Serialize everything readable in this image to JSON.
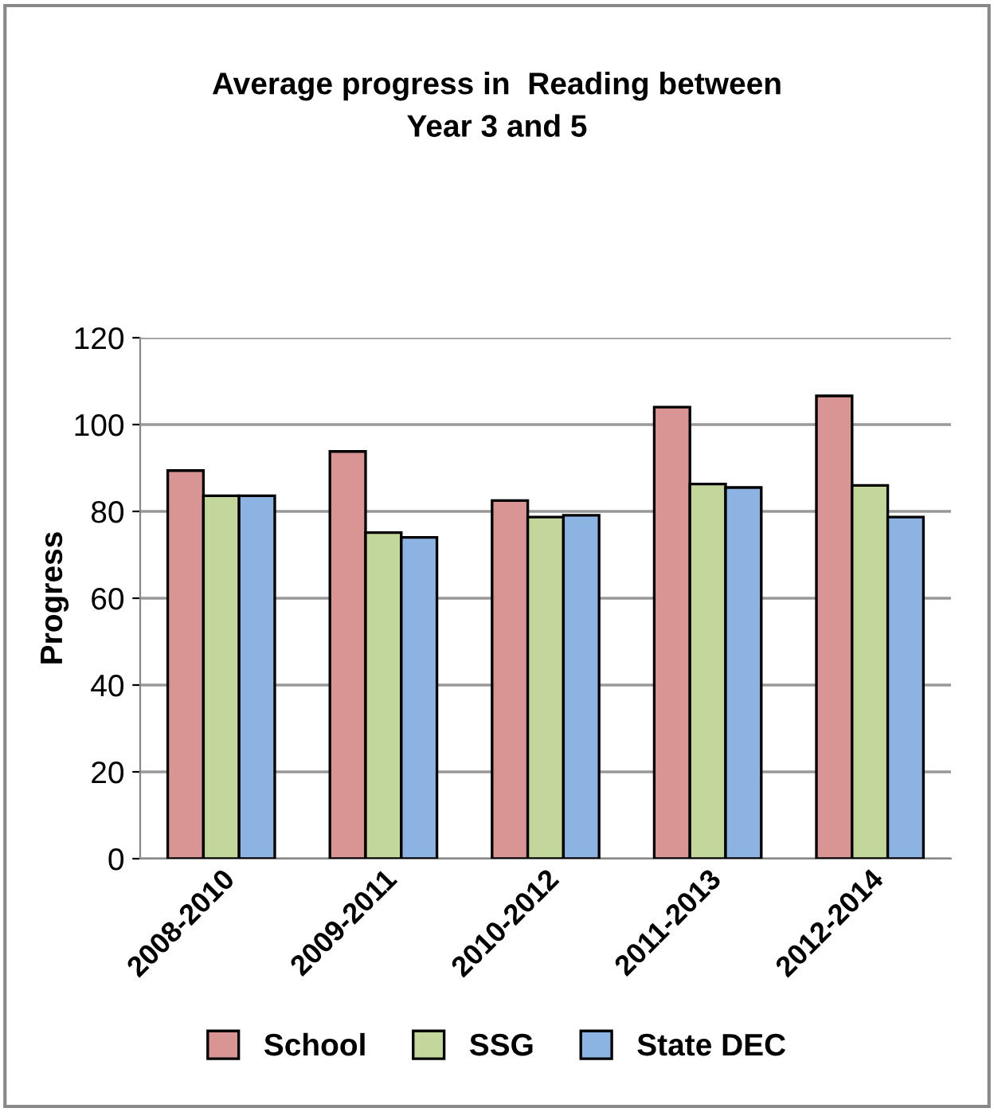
{
  "chart_data": {
    "type": "bar",
    "title": "Average progress in  Reading between\nYear 3 and 5",
    "ylabel": "Progress",
    "categories": [
      "2008-2010",
      "2009-2011",
      "2010-2012",
      "2011-2013",
      "2012-2014"
    ],
    "series": [
      {
        "name": "School",
        "color": "#d99594",
        "values": [
          89.4,
          93.8,
          82.5,
          104.0,
          106.6
        ]
      },
      {
        "name": "SSG",
        "color": "#c3d69b",
        "values": [
          83.6,
          75.1,
          78.7,
          86.3,
          86.0
        ]
      },
      {
        "name": "State DEC",
        "color": "#8db3e2",
        "values": [
          83.6,
          74.0,
          79.1,
          85.5,
          78.7
        ]
      }
    ],
    "ylim": [
      0,
      120
    ],
    "yticks": [
      0,
      20,
      40,
      60,
      80,
      100,
      120
    ],
    "grid": "y",
    "legend": "bottom"
  }
}
